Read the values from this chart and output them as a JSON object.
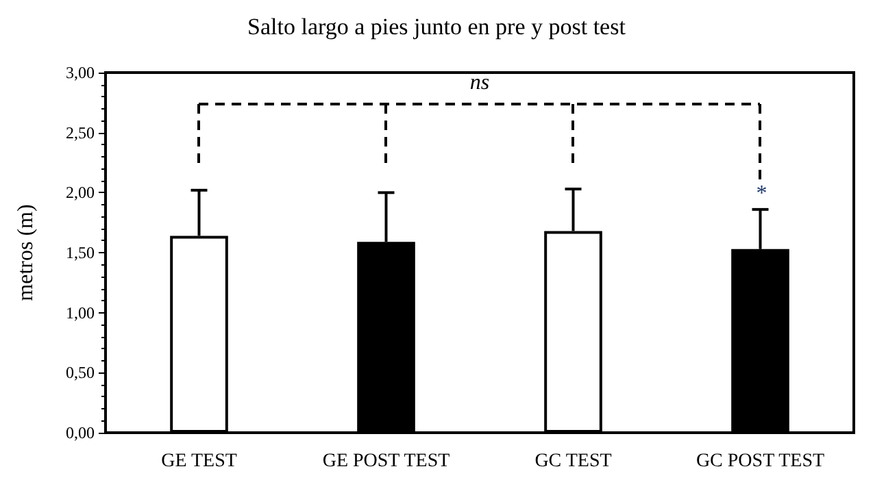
{
  "chart_data": {
    "type": "bar",
    "title": "Salto largo a pies junto en pre y post test",
    "ylabel": "metros (m)",
    "categories": [
      "GE TEST",
      "GE POST TEST",
      "GC TEST",
      "GC POST TEST"
    ],
    "values": [
      1.64,
      1.59,
      1.68,
      1.53
    ],
    "colors": [
      "#ffffff",
      "#000000",
      "#ffffff",
      "#000000"
    ],
    "errors": [
      [
        1.64,
        2.02
      ],
      [
        1.59,
        2.0
      ],
      [
        1.68,
        2.03
      ],
      [
        1.53,
        1.86
      ]
    ],
    "ylim": [
      0,
      3
    ],
    "yticks": [
      {
        "value": 0,
        "label": "0,00"
      },
      {
        "value": 0.5,
        "label": "0,50"
      },
      {
        "value": 1,
        "label": "1,00"
      },
      {
        "value": 1.5,
        "label": "1,50"
      },
      {
        "value": 2,
        "label": "2,00"
      },
      {
        "value": 2.5,
        "label": "2,50"
      },
      {
        "value": 3,
        "label": "3,00"
      }
    ],
    "grid": false,
    "annotations": [
      "ns",
      "*"
    ]
  }
}
